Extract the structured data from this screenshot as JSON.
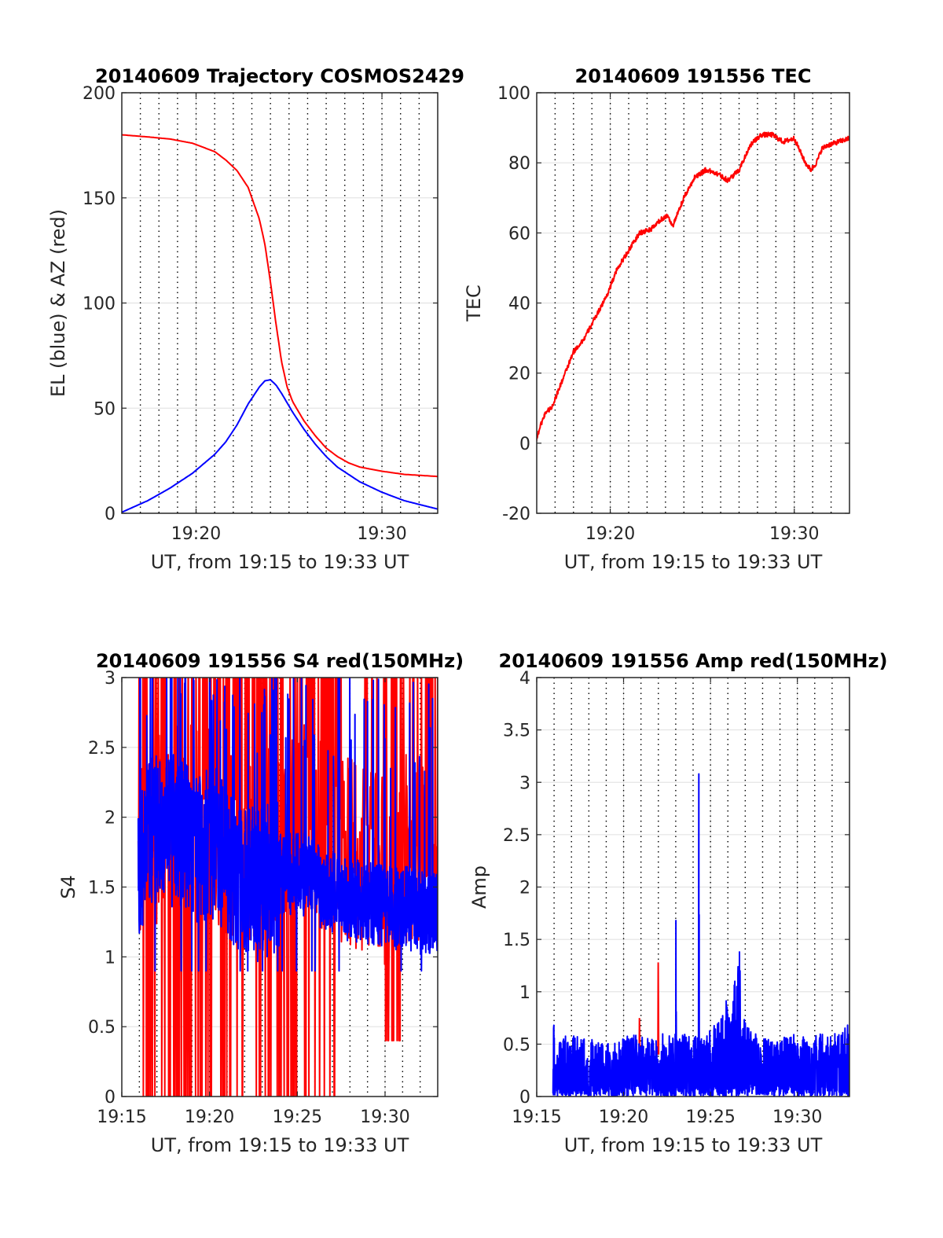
{
  "chart_data": [
    {
      "id": "trajectory",
      "type": "line",
      "title": "20140609 Trajectory COSMOS2429",
      "xlabel": "UT, from 19:15 to 19:33 UT",
      "ylabel": "EL (blue) & AZ (red)",
      "xlim": [
        19.2667,
        19.55
      ],
      "ylim": [
        0,
        200
      ],
      "xticks": [
        {
          "v": 19.3333,
          "label": "19:20"
        },
        {
          "v": 19.5,
          "label": "19:30"
        }
      ],
      "yticks": [
        0,
        50,
        100,
        150,
        200
      ],
      "grid": true,
      "minor_vgrid_step_min": 1,
      "series": [
        {
          "color": "#ff0000",
          "x": [
            19.2667,
            19.29,
            19.31,
            19.33,
            19.35,
            19.36,
            19.37,
            19.38,
            19.39,
            19.395,
            19.4,
            19.405,
            19.41,
            19.415,
            19.42,
            19.43,
            19.44,
            19.45,
            19.46,
            19.47,
            19.48,
            19.5,
            19.52,
            19.55
          ],
          "y": [
            180,
            179,
            178,
            176,
            172,
            168,
            163,
            155,
            140,
            128,
            110,
            90,
            72,
            60,
            53,
            44,
            37,
            31,
            27,
            24,
            22,
            20,
            18.5,
            17.5
          ]
        },
        {
          "color": "#0000ff",
          "x": [
            19.2667,
            19.29,
            19.31,
            19.33,
            19.35,
            19.36,
            19.37,
            19.38,
            19.39,
            19.395,
            19.4,
            19.405,
            19.41,
            19.42,
            19.43,
            19.44,
            19.45,
            19.46,
            19.48,
            19.5,
            19.52,
            19.55
          ],
          "y": [
            0.5,
            6,
            12,
            19,
            28,
            34,
            42,
            52,
            60,
            63,
            63.5,
            61,
            57,
            48,
            40,
            33,
            27,
            22,
            15,
            10,
            6,
            2
          ]
        }
      ]
    },
    {
      "id": "tec",
      "type": "line",
      "title": "20140609 191556 TEC",
      "xlabel": "UT, from 19:15 to 19:33 UT",
      "ylabel": "TEC",
      "xlim": [
        19.2667,
        19.55
      ],
      "ylim": [
        -20,
        100
      ],
      "xticks": [
        {
          "v": 19.3333,
          "label": "19:20"
        },
        {
          "v": 19.5,
          "label": "19:30"
        }
      ],
      "yticks": [
        -20,
        0,
        20,
        40,
        60,
        80,
        100
      ],
      "grid": true,
      "minor_vgrid_step_min": 1,
      "series": [
        {
          "color": "#ff0000",
          "x": [
            19.2656,
            19.27,
            19.275,
            19.28,
            19.29,
            19.3,
            19.31,
            19.32,
            19.33,
            19.34,
            19.35,
            19.36,
            19.37,
            19.38,
            19.385,
            19.39,
            19.4,
            19.41,
            19.42,
            19.43,
            19.44,
            19.45,
            19.46,
            19.47,
            19.48,
            19.49,
            19.5,
            19.51,
            19.515,
            19.52,
            19.525,
            19.53,
            19.54,
            19.55
          ],
          "y": [
            0,
            5,
            9,
            10,
            18,
            26,
            30,
            36,
            42,
            50,
            55,
            60,
            61,
            64,
            65,
            62,
            70,
            76,
            78,
            77,
            75,
            78,
            85,
            88,
            88,
            86,
            87,
            80,
            78,
            80,
            84,
            85,
            86,
            87
          ]
        }
      ]
    },
    {
      "id": "s4",
      "type": "line",
      "title": "20140609 191556 S4 red(150MHz)",
      "xlabel": "UT, from 19:15 to 19:33 UT",
      "ylabel": "S4",
      "xlim": [
        19.25,
        19.55
      ],
      "ylim": [
        0,
        3
      ],
      "xticks": [
        {
          "v": 19.25,
          "label": "19:15"
        },
        {
          "v": 19.3333,
          "label": "19:20"
        },
        {
          "v": 19.4167,
          "label": "19:25"
        },
        {
          "v": 19.5,
          "label": "19:30"
        }
      ],
      "yticks": [
        0,
        0.5,
        1,
        1.5,
        2,
        2.5,
        3
      ],
      "grid": true,
      "minor_vgrid_step_min": 1,
      "series": [
        {
          "color": "#ff0000",
          "x": [
            19.2656,
            19.28,
            19.3,
            19.32,
            19.34,
            19.36,
            19.38,
            19.4,
            19.42,
            19.44,
            19.46,
            19.48,
            19.5,
            19.52,
            19.54,
            19.55
          ],
          "y": [
            1.6,
            1.9,
            2.1,
            2.0,
            1.9,
            1.7,
            1.8,
            1.9,
            2.0,
            1.9,
            1.8,
            1.7,
            1.6,
            1.8,
            1.7,
            1.6
          ]
        },
        {
          "color": "#0000ff",
          "x": [
            19.2656,
            19.28,
            19.3,
            19.32,
            19.34,
            19.36,
            19.38,
            19.4,
            19.42,
            19.44,
            19.46,
            19.48,
            19.5,
            19.52,
            19.54,
            19.55
          ],
          "y": [
            1.7,
            1.9,
            1.9,
            1.8,
            1.8,
            1.6,
            1.5,
            1.6,
            1.6,
            1.5,
            1.4,
            1.4,
            1.35,
            1.35,
            1.3,
            1.3
          ]
        }
      ]
    },
    {
      "id": "amp",
      "type": "line",
      "title": "20140609 191556 Amp red(150MHz)",
      "xlabel": "UT, from 19:15 to 19:33 UT",
      "ylabel": "Amp",
      "xlim": [
        19.25,
        19.55
      ],
      "ylim": [
        0,
        4
      ],
      "xticks": [
        {
          "v": 19.25,
          "label": "19:15"
        },
        {
          "v": 19.3333,
          "label": "19:20"
        },
        {
          "v": 19.4167,
          "label": "19:25"
        },
        {
          "v": 19.5,
          "label": "19:30"
        }
      ],
      "yticks": [
        0,
        0.5,
        1,
        1.5,
        2,
        2.5,
        3,
        3.5,
        4
      ],
      "grid": true,
      "minor_vgrid_step_min": 1,
      "series": [
        {
          "color": "#ff0000",
          "x": [
            19.3483,
            19.3485,
            19.349,
            19.3662,
            19.3665,
            19.367
          ],
          "y": [
            0.4,
            0.75,
            0.4,
            0.4,
            1.28,
            0.4
          ]
        },
        {
          "color": "#0000ff",
          "x": [
            19.2656,
            19.2665,
            19.268,
            19.28,
            19.3,
            19.32,
            19.34,
            19.36,
            19.37,
            19.383,
            19.3835,
            19.384,
            19.39,
            19.405,
            19.4055,
            19.406,
            19.41,
            19.42,
            19.44,
            19.4445,
            19.445,
            19.4455,
            19.46,
            19.48,
            19.5,
            19.52,
            19.54,
            19.55
          ],
          "y": [
            0.45,
            0.85,
            0.5,
            0.6,
            0.55,
            0.5,
            0.6,
            0.55,
            0.6,
            0.6,
            1.68,
            0.6,
            0.6,
            0.6,
            3.08,
            0.6,
            0.55,
            0.7,
            1.1,
            1.38,
            1.2,
            0.8,
            0.6,
            0.55,
            0.6,
            0.6,
            0.6,
            0.84
          ]
        }
      ]
    }
  ]
}
